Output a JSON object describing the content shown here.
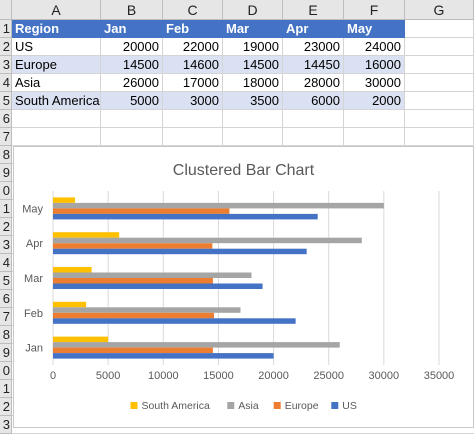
{
  "columns": [
    "A",
    "B",
    "C",
    "D",
    "E",
    "F",
    "G"
  ],
  "rows": [
    "1",
    "2",
    "3",
    "4",
    "5",
    "6",
    "7",
    "8",
    "9",
    "0",
    "1",
    "2",
    "3",
    "4",
    "5",
    "6",
    "7",
    "8",
    "9",
    "0",
    "1",
    "2",
    "3"
  ],
  "table": {
    "headers": [
      "Region",
      "Jan",
      "Feb",
      "Mar",
      "Apr",
      "May"
    ],
    "rows": [
      [
        "US",
        "20000",
        "22000",
        "19000",
        "23000",
        "24000"
      ],
      [
        "Europe",
        "14500",
        "14600",
        "14500",
        "14450",
        "16000"
      ],
      [
        "Asia",
        "26000",
        "17000",
        "18000",
        "28000",
        "30000"
      ],
      [
        "South America",
        "5000",
        "3000",
        "3500",
        "6000",
        "2000"
      ]
    ]
  },
  "colors": {
    "header": "#4472c4",
    "band": "#d9e1f2"
  },
  "chart_data": {
    "type": "bar",
    "orientation": "horizontal",
    "title": "Clustered Bar Chart",
    "categories": [
      "Jan",
      "Feb",
      "Mar",
      "Apr",
      "May"
    ],
    "series": [
      {
        "name": "US",
        "color": "#4472c4",
        "values": [
          20000,
          22000,
          19000,
          23000,
          24000
        ]
      },
      {
        "name": "Europe",
        "color": "#ed7d31",
        "values": [
          14500,
          14600,
          14500,
          14450,
          16000
        ]
      },
      {
        "name": "Asia",
        "color": "#a5a5a5",
        "values": [
          26000,
          17000,
          18000,
          28000,
          30000
        ]
      },
      {
        "name": "South America",
        "color": "#ffc000",
        "values": [
          5000,
          3000,
          3500,
          6000,
          2000
        ]
      }
    ],
    "legend_order": [
      "South America",
      "Asia",
      "Europe",
      "US"
    ],
    "xlim": [
      0,
      35000
    ],
    "xticks": [
      "0",
      "5000",
      "10000",
      "15000",
      "20000",
      "25000",
      "30000",
      "35000"
    ],
    "grid": true,
    "legend": "bottom"
  }
}
